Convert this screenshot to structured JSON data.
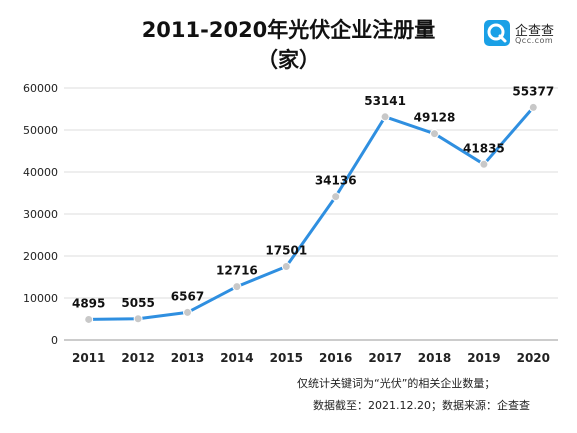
{
  "chart_data": {
    "type": "line",
    "title": "2011-2020年光伏企业注册量",
    "subtitle": "（家）",
    "categories": [
      "2011",
      "2012",
      "2013",
      "2014",
      "2015",
      "2016",
      "2017",
      "2018",
      "2019",
      "2020"
    ],
    "values": [
      4895,
      5055,
      6567,
      12716,
      17501,
      34136,
      53141,
      49128,
      41835,
      55377
    ],
    "data_labels": [
      "4895",
      "5055",
      "6567",
      "12716",
      "17501",
      "34136",
      "53141",
      "49128",
      "41835",
      "55377"
    ],
    "y_ticks": [
      "0",
      "10000",
      "20000",
      "30000",
      "40000",
      "50000",
      "60000"
    ],
    "ylim": [
      0,
      60000
    ],
    "grid": true,
    "legend": "none",
    "line_color": "#2f8fe0",
    "marker_color": "#c8c8c8"
  },
  "logo": {
    "name": "企查查",
    "domain": "Qcc.com",
    "color": "#1aa0e6"
  },
  "notes": {
    "line1": "仅统计关键词为“光伏”的相关企业数量；",
    "line2": "数据截至：2021.12.20；数据来源：企查查"
  }
}
